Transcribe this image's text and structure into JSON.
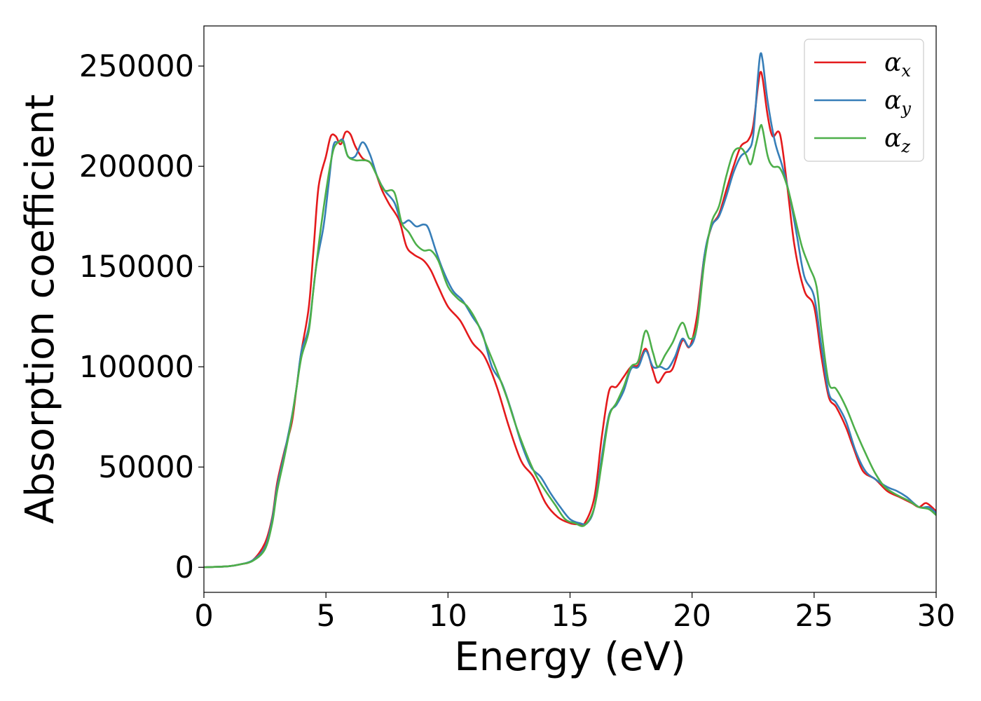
{
  "chart_data": {
    "type": "line",
    "title": "",
    "xlabel": "Energy (eV)",
    "ylabel": "Absorption coefficient",
    "xlim": [
      0,
      30
    ],
    "ylim": [
      -12500,
      270000
    ],
    "x_ticks": [
      0,
      5,
      10,
      15,
      20,
      25,
      30
    ],
    "x_tick_labels": [
      "0",
      "5",
      "10",
      "15",
      "20",
      "25",
      "30"
    ],
    "y_ticks": [
      0,
      50000,
      100000,
      150000,
      200000,
      250000
    ],
    "y_tick_labels": [
      "0",
      "50000",
      "100000",
      "150000",
      "200000",
      "250000"
    ],
    "grid": false,
    "legend_position": "top-right",
    "series": [
      {
        "name": "α",
        "subscript": "x",
        "color": "#e41a1c",
        "points": [
          [
            0,
            0
          ],
          [
            1,
            500
          ],
          [
            1.5,
            1500
          ],
          [
            2,
            3500
          ],
          [
            2.5,
            12000
          ],
          [
            2.8,
            25000
          ],
          [
            3,
            42000
          ],
          [
            3.3,
            58000
          ],
          [
            3.6,
            72000
          ],
          [
            3.8,
            90000
          ],
          [
            4,
            108000
          ],
          [
            4.3,
            130000
          ],
          [
            4.5,
            160000
          ],
          [
            4.7,
            190000
          ],
          [
            5,
            205000
          ],
          [
            5.2,
            215000
          ],
          [
            5.4,
            215000
          ],
          [
            5.6,
            211000
          ],
          [
            5.8,
            217000
          ],
          [
            6,
            216000
          ],
          [
            6.2,
            210000
          ],
          [
            6.5,
            204000
          ],
          [
            6.8,
            202000
          ],
          [
            7,
            198000
          ],
          [
            7.3,
            188000
          ],
          [
            7.6,
            181000
          ],
          [
            8,
            173000
          ],
          [
            8.3,
            160000
          ],
          [
            8.6,
            156000
          ],
          [
            9,
            153000
          ],
          [
            9.3,
            148000
          ],
          [
            9.6,
            140000
          ],
          [
            10,
            130000
          ],
          [
            10.5,
            123000
          ],
          [
            11,
            112000
          ],
          [
            11.5,
            105000
          ],
          [
            12,
            90000
          ],
          [
            12.5,
            70000
          ],
          [
            13,
            53000
          ],
          [
            13.5,
            45000
          ],
          [
            14,
            32000
          ],
          [
            14.5,
            25000
          ],
          [
            15,
            22000
          ],
          [
            15.3,
            21500
          ],
          [
            15.6,
            22000
          ],
          [
            16,
            35000
          ],
          [
            16.3,
            65000
          ],
          [
            16.6,
            88000
          ],
          [
            16.9,
            90000
          ],
          [
            17.2,
            95000
          ],
          [
            17.5,
            100000
          ],
          [
            17.8,
            101000
          ],
          [
            18.1,
            109000
          ],
          [
            18.4,
            98000
          ],
          [
            18.6,
            92000
          ],
          [
            18.9,
            97000
          ],
          [
            19.2,
            99000
          ],
          [
            19.6,
            113000
          ],
          [
            19.9,
            110000
          ],
          [
            20.2,
            125000
          ],
          [
            20.5,
            155000
          ],
          [
            20.8,
            170000
          ],
          [
            21.1,
            176000
          ],
          [
            21.4,
            188000
          ],
          [
            21.7,
            200000
          ],
          [
            22,
            210000
          ],
          [
            22.3,
            213000
          ],
          [
            22.5,
            220000
          ],
          [
            22.7,
            240000
          ],
          [
            22.8,
            247000
          ],
          [
            22.9,
            243000
          ],
          [
            23.1,
            225000
          ],
          [
            23.3,
            215000
          ],
          [
            23.6,
            216000
          ],
          [
            23.9,
            190000
          ],
          [
            24.2,
            160000
          ],
          [
            24.6,
            138000
          ],
          [
            25,
            130000
          ],
          [
            25.3,
            105000
          ],
          [
            25.6,
            85000
          ],
          [
            25.9,
            80000
          ],
          [
            26.3,
            70000
          ],
          [
            26.6,
            60000
          ],
          [
            27,
            48000
          ],
          [
            27.5,
            44000
          ],
          [
            28,
            38000
          ],
          [
            28.5,
            35000
          ],
          [
            29,
            32000
          ],
          [
            29.3,
            30000
          ],
          [
            29.6,
            32000
          ],
          [
            30,
            28000
          ]
        ]
      },
      {
        "name": "α",
        "subscript": "y",
        "color": "#377eb8",
        "points": [
          [
            0,
            0
          ],
          [
            1,
            500
          ],
          [
            1.5,
            1500
          ],
          [
            2,
            3500
          ],
          [
            2.5,
            10000
          ],
          [
            2.8,
            24000
          ],
          [
            3,
            40000
          ],
          [
            3.3,
            57000
          ],
          [
            3.6,
            75000
          ],
          [
            3.8,
            90000
          ],
          [
            4,
            108000
          ],
          [
            4.3,
            120000
          ],
          [
            4.6,
            150000
          ],
          [
            4.9,
            170000
          ],
          [
            5.1,
            190000
          ],
          [
            5.3,
            210000
          ],
          [
            5.5,
            212000
          ],
          [
            5.7,
            213000
          ],
          [
            5.9,
            205000
          ],
          [
            6.2,
            205000
          ],
          [
            6.5,
            212000
          ],
          [
            6.8,
            206000
          ],
          [
            7.1,
            195000
          ],
          [
            7.4,
            188000
          ],
          [
            7.8,
            182000
          ],
          [
            8.1,
            172000
          ],
          [
            8.4,
            173000
          ],
          [
            8.7,
            170000
          ],
          [
            9,
            171000
          ],
          [
            9.2,
            169000
          ],
          [
            9.5,
            158000
          ],
          [
            9.8,
            148000
          ],
          [
            10.2,
            138000
          ],
          [
            10.6,
            133000
          ],
          [
            11,
            125000
          ],
          [
            11.4,
            117000
          ],
          [
            11.8,
            100000
          ],
          [
            12.2,
            92000
          ],
          [
            12.6,
            78000
          ],
          [
            13,
            62000
          ],
          [
            13.4,
            50000
          ],
          [
            13.8,
            45000
          ],
          [
            14.2,
            37000
          ],
          [
            14.6,
            30000
          ],
          [
            15,
            24000
          ],
          [
            15.4,
            22000
          ],
          [
            15.7,
            22000
          ],
          [
            16,
            30000
          ],
          [
            16.3,
            55000
          ],
          [
            16.6,
            76000
          ],
          [
            16.9,
            81000
          ],
          [
            17.2,
            88000
          ],
          [
            17.5,
            99000
          ],
          [
            17.8,
            100000
          ],
          [
            18.1,
            108000
          ],
          [
            18.4,
            100000
          ],
          [
            18.7,
            100000
          ],
          [
            19,
            99000
          ],
          [
            19.3,
            105000
          ],
          [
            19.6,
            114000
          ],
          [
            19.9,
            110000
          ],
          [
            20.2,
            120000
          ],
          [
            20.5,
            155000
          ],
          [
            20.8,
            170000
          ],
          [
            21.1,
            175000
          ],
          [
            21.4,
            185000
          ],
          [
            21.7,
            197000
          ],
          [
            22,
            205000
          ],
          [
            22.3,
            208000
          ],
          [
            22.5,
            215000
          ],
          [
            22.7,
            245000
          ],
          [
            22.8,
            256000
          ],
          [
            22.9,
            252000
          ],
          [
            23.1,
            232000
          ],
          [
            23.4,
            212000
          ],
          [
            23.7,
            200000
          ],
          [
            24,
            185000
          ],
          [
            24.3,
            165000
          ],
          [
            24.6,
            145000
          ],
          [
            25,
            135000
          ],
          [
            25.3,
            110000
          ],
          [
            25.6,
            87000
          ],
          [
            25.9,
            82000
          ],
          [
            26.3,
            73000
          ],
          [
            26.7,
            58000
          ],
          [
            27.1,
            48000
          ],
          [
            27.5,
            44000
          ],
          [
            28,
            40000
          ],
          [
            28.4,
            38000
          ],
          [
            28.8,
            35000
          ],
          [
            29.3,
            30000
          ],
          [
            29.7,
            30000
          ],
          [
            30,
            27000
          ]
        ]
      },
      {
        "name": "α",
        "subscript": "z",
        "color": "#4daf4a",
        "points": [
          [
            0,
            0
          ],
          [
            1,
            500
          ],
          [
            1.5,
            1500
          ],
          [
            2,
            3200
          ],
          [
            2.5,
            9000
          ],
          [
            2.8,
            22000
          ],
          [
            3,
            38000
          ],
          [
            3.3,
            55000
          ],
          [
            3.6,
            74000
          ],
          [
            3.8,
            90000
          ],
          [
            4,
            105000
          ],
          [
            4.3,
            118000
          ],
          [
            4.5,
            140000
          ],
          [
            4.8,
            170000
          ],
          [
            5.1,
            195000
          ],
          [
            5.3,
            208000
          ],
          [
            5.5,
            212000
          ],
          [
            5.7,
            212000
          ],
          [
            5.9,
            205000
          ],
          [
            6.2,
            203000
          ],
          [
            6.5,
            203000
          ],
          [
            6.8,
            202000
          ],
          [
            7.1,
            195000
          ],
          [
            7.4,
            188000
          ],
          [
            7.8,
            187000
          ],
          [
            8.1,
            172000
          ],
          [
            8.4,
            167000
          ],
          [
            8.7,
            161000
          ],
          [
            9,
            158000
          ],
          [
            9.3,
            158000
          ],
          [
            9.6,
            153000
          ],
          [
            10,
            140000
          ],
          [
            10.4,
            134000
          ],
          [
            10.8,
            130000
          ],
          [
            11.2,
            122000
          ],
          [
            11.6,
            110000
          ],
          [
            12,
            98000
          ],
          [
            12.4,
            85000
          ],
          [
            12.8,
            70000
          ],
          [
            13.2,
            57000
          ],
          [
            13.6,
            46000
          ],
          [
            14,
            38000
          ],
          [
            14.4,
            31000
          ],
          [
            14.8,
            24000
          ],
          [
            15.2,
            22000
          ],
          [
            15.6,
            21000
          ],
          [
            16,
            30000
          ],
          [
            16.3,
            52000
          ],
          [
            16.6,
            75000
          ],
          [
            16.9,
            82000
          ],
          [
            17.2,
            90000
          ],
          [
            17.5,
            100000
          ],
          [
            17.8,
            103000
          ],
          [
            18.1,
            118000
          ],
          [
            18.4,
            107000
          ],
          [
            18.6,
            100000
          ],
          [
            18.9,
            106000
          ],
          [
            19.2,
            112000
          ],
          [
            19.6,
            122000
          ],
          [
            19.9,
            114000
          ],
          [
            20.2,
            120000
          ],
          [
            20.5,
            152000
          ],
          [
            20.8,
            172000
          ],
          [
            21.1,
            180000
          ],
          [
            21.4,
            195000
          ],
          [
            21.7,
            207000
          ],
          [
            22,
            209000
          ],
          [
            22.2,
            206000
          ],
          [
            22.4,
            201000
          ],
          [
            22.6,
            210000
          ],
          [
            22.8,
            220000
          ],
          [
            22.9,
            218000
          ],
          [
            23.1,
            205000
          ],
          [
            23.3,
            200000
          ],
          [
            23.6,
            199000
          ],
          [
            23.9,
            190000
          ],
          [
            24.2,
            175000
          ],
          [
            24.5,
            160000
          ],
          [
            24.8,
            150000
          ],
          [
            25.1,
            140000
          ],
          [
            25.3,
            118000
          ],
          [
            25.6,
            92000
          ],
          [
            25.9,
            89000
          ],
          [
            26.3,
            80000
          ],
          [
            26.7,
            68000
          ],
          [
            27.1,
            57000
          ],
          [
            27.5,
            47000
          ],
          [
            27.9,
            40000
          ],
          [
            28.4,
            36000
          ],
          [
            28.9,
            33000
          ],
          [
            29.3,
            30000
          ],
          [
            29.7,
            29000
          ],
          [
            30,
            26000
          ]
        ]
      }
    ]
  }
}
